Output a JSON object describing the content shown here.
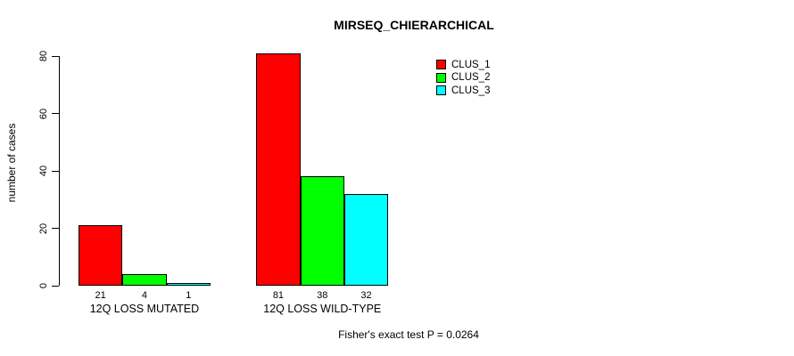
{
  "title": "MIRSEQ_CHIERARCHICAL",
  "annotation": "Fisher's exact test P = 0.0264",
  "chart_data": {
    "type": "bar",
    "title": "MIRSEQ_CHIERARCHICAL",
    "categories": [
      "12Q LOSS MUTATED",
      "12Q LOSS WILD-TYPE"
    ],
    "series": [
      {
        "name": "CLUS_1",
        "color": "#ff0000",
        "values": [
          21,
          81
        ]
      },
      {
        "name": "CLUS_2",
        "color": "#00ff00",
        "values": [
          4,
          38
        ]
      },
      {
        "name": "CLUS_3",
        "color": "#00ffff",
        "values": [
          1,
          32
        ]
      }
    ],
    "xlabel": "",
    "ylabel": "number of cases",
    "yticks": [
      0,
      20,
      40,
      60,
      80
    ],
    "ylim": [
      0,
      81
    ],
    "grid": false,
    "legend_position": "top-right",
    "bar_value_labels": true,
    "bar_border_color": "#000000",
    "axis_color": "#000000",
    "background_color": "#ffffff"
  }
}
